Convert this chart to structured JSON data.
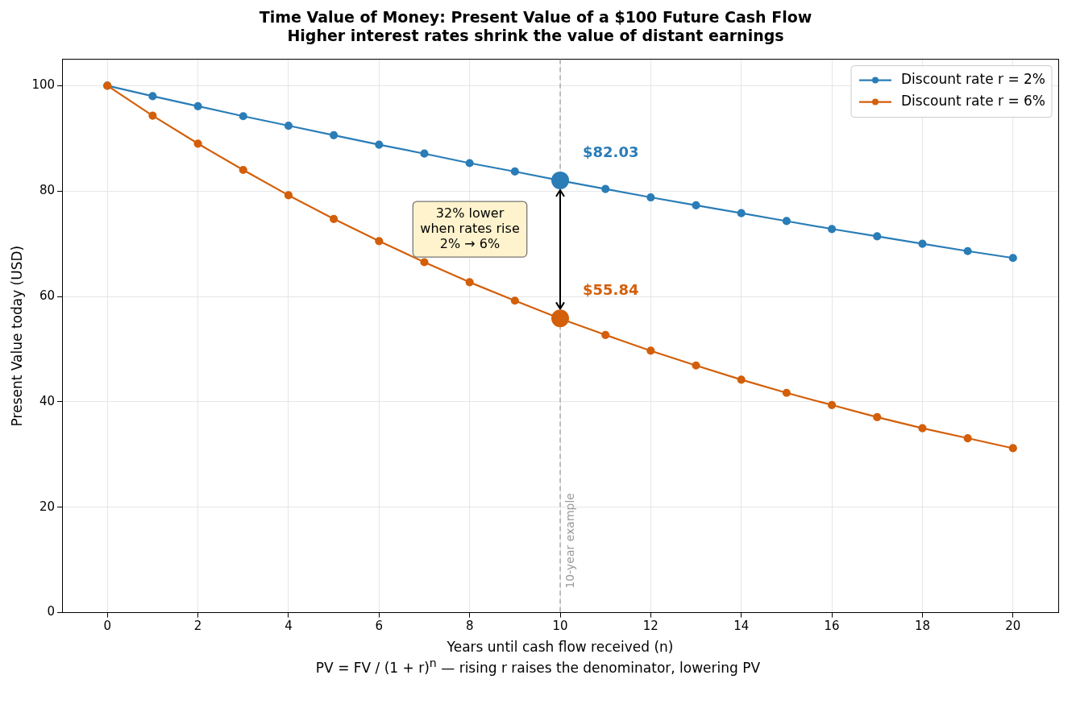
{
  "chart_data": {
    "type": "line",
    "title": "Time Value of Money: Present Value of a $100 Future Cash Flow",
    "subtitle": "Higher interest rates shrink the value of distant earnings",
    "xlabel": "Years until cash flow received (n)",
    "ylabel": "Present Value today (USD)",
    "x": [
      0,
      1,
      2,
      3,
      4,
      5,
      6,
      7,
      8,
      9,
      10,
      11,
      12,
      13,
      14,
      15,
      16,
      17,
      18,
      19,
      20
    ],
    "series": [
      {
        "name": "Discount rate r = 2%",
        "color": "#2a7db7",
        "values": [
          100,
          98.0,
          96.1,
          94.2,
          92.4,
          90.6,
          88.8,
          87.1,
          85.3,
          83.7,
          82.0,
          80.4,
          78.8,
          77.3,
          75.8,
          74.3,
          72.8,
          71.4,
          70.0,
          68.6,
          67.3
        ]
      },
      {
        "name": "Discount rate r = 6%",
        "color": "#d35f0a",
        "values": [
          100,
          94.3,
          89.0,
          84.0,
          79.2,
          74.7,
          70.5,
          66.5,
          62.7,
          59.2,
          55.8,
          52.7,
          49.7,
          46.9,
          44.2,
          41.7,
          39.4,
          37.1,
          35.0,
          33.1,
          31.2
        ]
      }
    ],
    "xlim": [
      -1,
      21
    ],
    "xticks": [
      0,
      2,
      4,
      6,
      8,
      10,
      12,
      14,
      16,
      18,
      20
    ],
    "ylim": [
      0,
      105
    ],
    "yticks": [
      0,
      20,
      40,
      60,
      80,
      100
    ],
    "grid": true,
    "legend": "top right",
    "marker": "circle",
    "line_style": "solid",
    "ref_lines": [
      {
        "axis": "x",
        "value": 10,
        "label": "10-year example",
        "color": "#999999",
        "line_style": "dashed"
      }
    ],
    "annotations": [
      {
        "text": "$82.03",
        "x": 10,
        "y": 82.03
      },
      {
        "text": "$55.84",
        "x": 10,
        "y": 55.84
      },
      "32% lower\nwhen rates rise\n2% → 6%",
      "PV = FV / (1 + r)$^{n}$   —   rising r raises the denominator, lowering PV"
    ]
  }
}
